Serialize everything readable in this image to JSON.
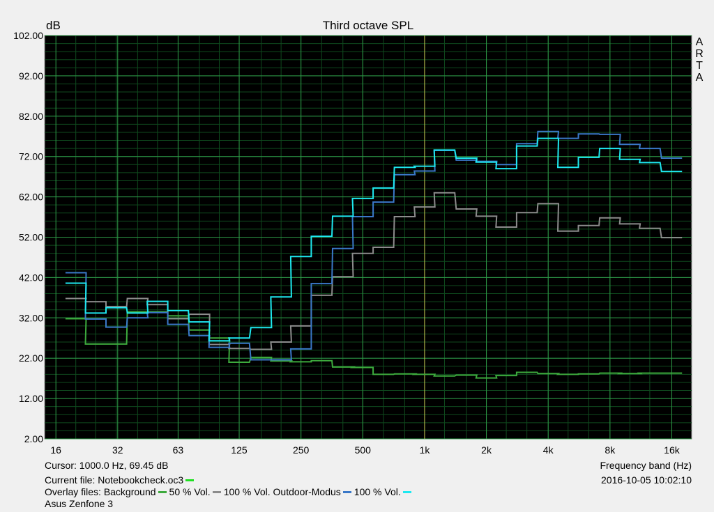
{
  "chart_data": {
    "type": "line",
    "title": "Third octave SPL",
    "ylabel": "dB",
    "xlabel": "Frequency band (Hz)",
    "ylim": [
      2,
      102
    ],
    "x_scale": "log",
    "x_range_hz": [
      16,
      20000
    ],
    "x_ticks": [
      {
        "label": "16",
        "hz": 16
      },
      {
        "label": "32",
        "hz": 32
      },
      {
        "label": "63",
        "hz": 63
      },
      {
        "label": "125",
        "hz": 125
      },
      {
        "label": "250",
        "hz": 250
      },
      {
        "label": "500",
        "hz": 500
      },
      {
        "label": "1k",
        "hz": 1000
      },
      {
        "label": "2k",
        "hz": 2000
      },
      {
        "label": "4k",
        "hz": 4000
      },
      {
        "label": "8k",
        "hz": 8000
      },
      {
        "label": "16k",
        "hz": 16000
      }
    ],
    "y_ticks": [
      "102.00",
      "92.00",
      "82.00",
      "72.00",
      "62.00",
      "52.00",
      "42.00",
      "32.00",
      "22.00",
      "12.00",
      "2.00"
    ],
    "grid": true,
    "bands": [
      "20",
      "25",
      "31.5",
      "40",
      "50",
      "63",
      "80",
      "100",
      "125",
      "160",
      "200",
      "250",
      "315",
      "400",
      "500",
      "630",
      "800",
      "1k",
      "1.25k",
      "1.6k",
      "2k",
      "2.5k",
      "3.15k",
      "4k",
      "5k",
      "6.3k",
      "8k",
      "10k",
      "12.5k",
      "16k"
    ],
    "series": [
      {
        "name": "Background",
        "color": "#3daa3d",
        "values": [
          31.8,
          25.5,
          25.5,
          33.5,
          33.5,
          32.5,
          29,
          27,
          21,
          22.2,
          21.3,
          21.1,
          21.4,
          19.8,
          19.7,
          18,
          18.1,
          18,
          17.6,
          17.8,
          17.1,
          17.7,
          18.5,
          18.2,
          18,
          18.1,
          18.3,
          18.2,
          18.3,
          18.3
        ]
      },
      {
        "name": "50 % Vol.",
        "color": "#8c8c8c",
        "values": [
          36.8,
          36,
          34.8,
          36.8,
          35.3,
          31.8,
          32.9,
          25.4,
          24.4,
          24.2,
          26,
          30,
          37.6,
          42.2,
          48,
          49.5,
          57.1,
          59.5,
          63,
          59,
          57.2,
          54.5,
          58.1,
          60.3,
          53.5,
          54.9,
          56.8,
          55.3,
          54.2,
          51.9
        ]
      },
      {
        "name": "100 % Vol. Outdoor-Modus",
        "color": "#3a78c8",
        "values": [
          43.2,
          31.7,
          29.7,
          32,
          33.3,
          30.4,
          27.6,
          24.7,
          25.7,
          21.6,
          21.6,
          24.3,
          40.5,
          49.2,
          57.1,
          60.7,
          67.5,
          68.4,
          73.5,
          71.1,
          70.8,
          70,
          75.2,
          78.2,
          76.5,
          77.6,
          77.5,
          75,
          74,
          71.6
        ]
      },
      {
        "name": "100 % Vol.",
        "color": "#1ee8f0",
        "values": [
          40.6,
          33.2,
          34.5,
          33.2,
          36.1,
          33.8,
          31,
          26.3,
          27,
          29.6,
          37.2,
          47.2,
          52.2,
          57.2,
          61.6,
          64.2,
          69.3,
          69.6,
          73.6,
          71.6,
          70.6,
          69,
          74.6,
          76.5,
          69.3,
          71.8,
          74,
          71.3,
          70.5,
          68.3
        ]
      }
    ]
  },
  "cursor_text": "Cursor:  1000.0 Hz, 69.45 dB",
  "current_file_text": "Current file: Notebookcheck.oc3",
  "current_file_color": "#1ee020",
  "overlay_label": "Overlay files: ",
  "device_name": "Asus Zenfone 3",
  "timestamp": "2016-10-05  10:02:10",
  "brand": [
    "A",
    "R",
    "T",
    "A"
  ]
}
